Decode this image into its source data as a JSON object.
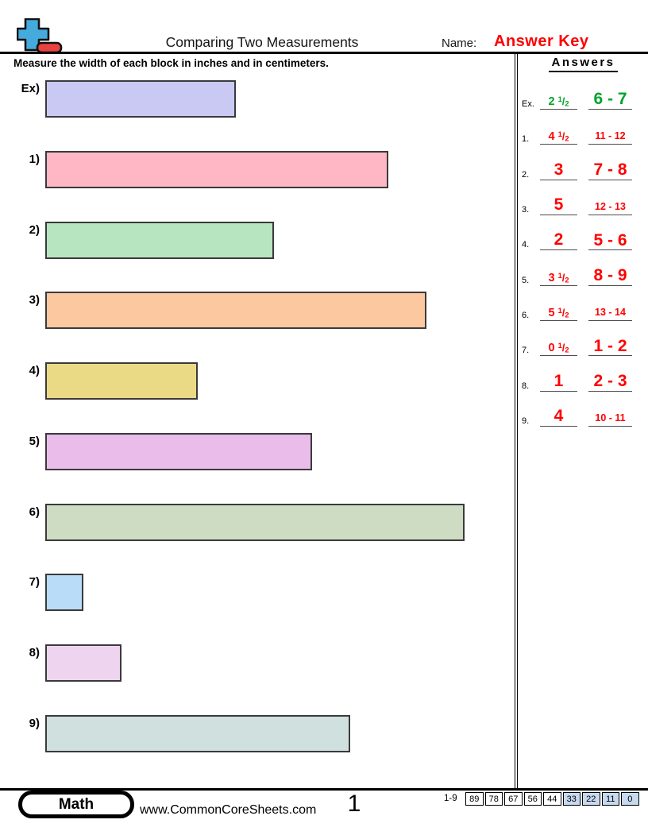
{
  "header": {
    "title": "Comparing Two Measurements",
    "name_label": "Name:",
    "answer_key": "Answer Key",
    "instruction": "Measure the width of each block in inches and in centimeters.",
    "answers_heading": "Answers"
  },
  "colors": {
    "green": "#00a32b",
    "red": "#fe0000",
    "answer_key_red": "#fe0000",
    "score_blue": "#c6d9f1",
    "logo_blue": "#45aadc",
    "logo_red": "#e84340"
  },
  "blocks": [
    {
      "label": "Ex)",
      "width_inches": 2.5,
      "fill": "#c9c9f3"
    },
    {
      "label": "1)",
      "width_inches": 4.5,
      "fill": "#ffb7c5"
    },
    {
      "label": "2)",
      "width_inches": 3,
      "fill": "#b7e5bf"
    },
    {
      "label": "3)",
      "width_inches": 5,
      "fill": "#fcc8a0"
    },
    {
      "label": "4)",
      "width_inches": 2,
      "fill": "#ebda85"
    },
    {
      "label": "5)",
      "width_inches": 3.5,
      "fill": "#e9bce9"
    },
    {
      "label": "6)",
      "width_inches": 5.5,
      "fill": "#cedcc3"
    },
    {
      "label": "7)",
      "width_inches": 0.5,
      "fill": "#b9dcf8"
    },
    {
      "label": "8)",
      "width_inches": 1,
      "fill": "#eed4ee"
    },
    {
      "label": "9)",
      "width_inches": 4,
      "fill": "#cfe0de"
    }
  ],
  "answers": [
    {
      "label": "Ex.",
      "in_whole": "2",
      "frac_num": "1",
      "slash": "/",
      "frac_den": "2",
      "cm": "6 - 7",
      "color": "green",
      "in_size": "frac",
      "cm_size": "big"
    },
    {
      "label": "1.",
      "in_whole": "4",
      "frac_num": "1",
      "slash": "/",
      "frac_den": "2",
      "cm": "11 - 12",
      "color": "red",
      "in_size": "frac",
      "cm_size": "small"
    },
    {
      "label": "2.",
      "in_whole": "3",
      "cm": "7 - 8",
      "color": "red",
      "in_size": "big",
      "cm_size": "big"
    },
    {
      "label": "3.",
      "in_whole": "5",
      "cm": "12 - 13",
      "color": "red",
      "in_size": "big",
      "cm_size": "small"
    },
    {
      "label": "4.",
      "in_whole": "2",
      "cm": "5 - 6",
      "color": "red",
      "in_size": "big",
      "cm_size": "big"
    },
    {
      "label": "5.",
      "in_whole": "3",
      "frac_num": "1",
      "slash": "/",
      "frac_den": "2",
      "cm": "8 - 9",
      "color": "red",
      "in_size": "frac",
      "cm_size": "big"
    },
    {
      "label": "6.",
      "in_whole": "5",
      "frac_num": "1",
      "slash": "/",
      "frac_den": "2",
      "cm": "13 - 14",
      "color": "red",
      "in_size": "frac",
      "cm_size": "small"
    },
    {
      "label": "7.",
      "in_whole": "0",
      "frac_num": "1",
      "slash": "/",
      "frac_den": "2",
      "cm": "1 - 2",
      "color": "red",
      "in_size": "frac",
      "cm_size": "big"
    },
    {
      "label": "8.",
      "in_whole": "1",
      "cm": "2 - 3",
      "color": "red",
      "in_size": "big",
      "cm_size": "big"
    },
    {
      "label": "9.",
      "in_whole": "4",
      "cm": "10 - 11",
      "color": "red",
      "in_size": "big",
      "cm_size": "small"
    }
  ],
  "footer": {
    "subject": "Math",
    "website": "www.CommonCoreSheets.com",
    "page_number": "1",
    "range_label": "1-9",
    "scores": [
      "89",
      "78",
      "67",
      "56",
      "44",
      "33",
      "22",
      "11",
      "0"
    ],
    "blue_from_index": 5
  }
}
